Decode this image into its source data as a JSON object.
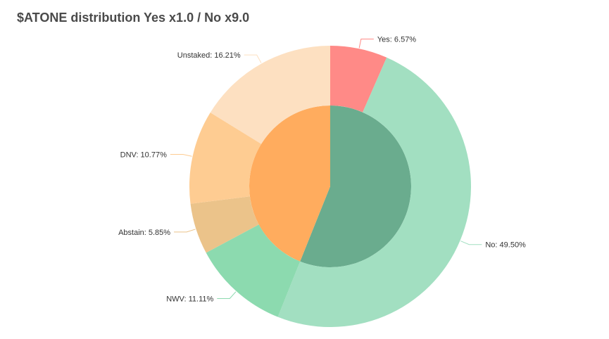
{
  "chart_data": {
    "type": "pie",
    "title": "$ATONE distribution Yes x1.0 / No x9.0",
    "rings": [
      {
        "ring": "outer",
        "slices": [
          {
            "label": "Yes: 6.57%",
            "value": 6.57,
            "color": "#ff8a87"
          },
          {
            "label": "No: 49.50%",
            "value": 49.5,
            "color": "#a2dfc1"
          },
          {
            "label": "NWV: 11.11%",
            "value": 11.11,
            "color": "#8cdaaf"
          },
          {
            "label": "Abstain: 5.85%",
            "value": 5.85,
            "color": "#ebc38a"
          },
          {
            "label": "DNV: 10.77%",
            "value": 10.77,
            "color": "#fecc92"
          },
          {
            "label": "Unstaked: 16.21%",
            "value": 16.21,
            "color": "#fde0c1"
          }
        ]
      },
      {
        "ring": "inner",
        "slices": [
          {
            "value": 56.07,
            "color": "#6aac8e"
          },
          {
            "value": 43.93,
            "color": "#ffac5e"
          }
        ]
      }
    ]
  }
}
